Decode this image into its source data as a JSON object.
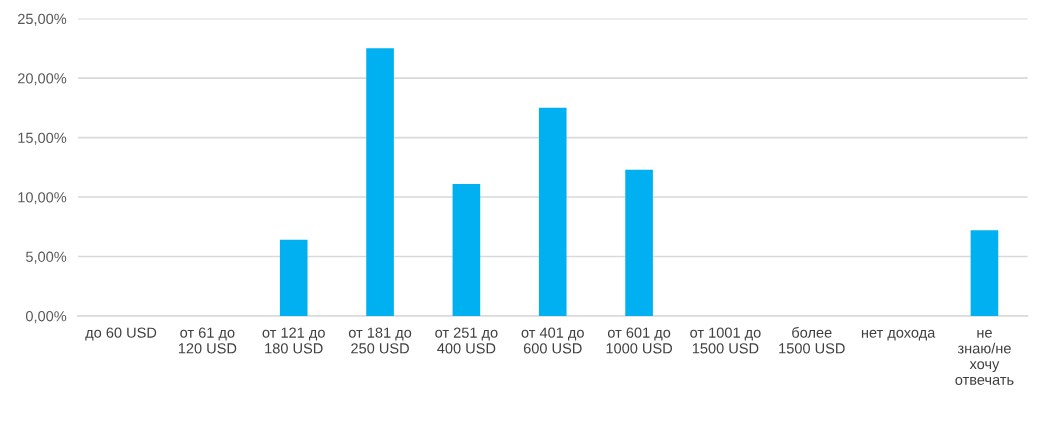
{
  "chart_data": {
    "type": "bar",
    "categories": [
      "до 60 USD",
      "от 61 до\n120 USD",
      "от 121 до\n180 USD",
      "от 181 до\n250 USD",
      "от 251 до\n400 USD",
      "от 401 до\n600 USD",
      "от 601 до\n1000 USD",
      "от 1001 до\n1500 USD",
      "более\n1500 USD",
      "нет дохода",
      "не\nзнаю/не\nхочу\nотвечать"
    ],
    "values": [
      0,
      0,
      6.4,
      22.5,
      11.1,
      17.5,
      12.3,
      0,
      0,
      0,
      7.2
    ],
    "color": "#00b0f0",
    "ylim": [
      0,
      25
    ],
    "yticks": [
      {
        "value": 0,
        "label": "0,00%"
      },
      {
        "value": 5,
        "label": "5,00%"
      },
      {
        "value": 10,
        "label": "10,00%"
      },
      {
        "value": 15,
        "label": "15,00%"
      },
      {
        "value": 20,
        "label": "20,00%"
      },
      {
        "value": 25,
        "label": "25,00%"
      }
    ],
    "grid": "y"
  }
}
